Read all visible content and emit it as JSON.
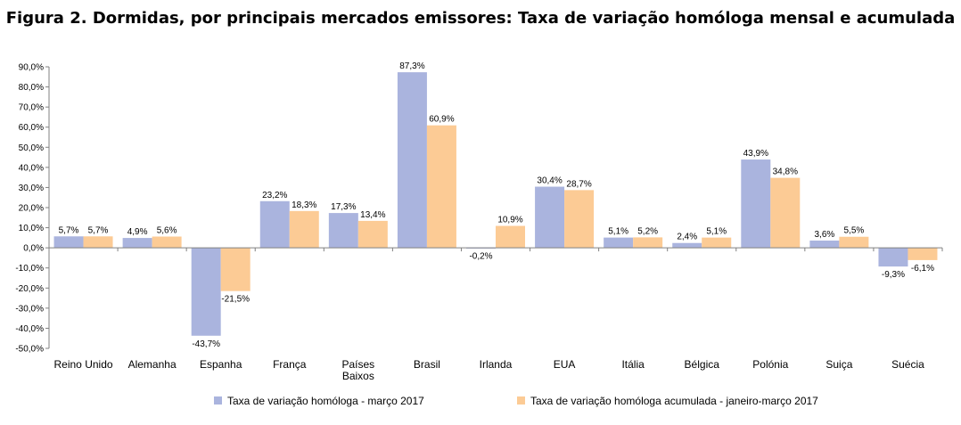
{
  "chart_data": {
    "type": "bar",
    "title": "Figura 2. Dormidas, por principais mercados emissores: Taxa de variação homóloga mensal e acumulada",
    "categories": [
      "Reino Unido",
      "Alemanha",
      "Espanha",
      "França",
      "Países\nBaixos",
      "Brasil",
      "Irlanda",
      "EUA",
      "Itália",
      "Bélgica",
      "Polónia",
      "Suiça",
      "Suécia"
    ],
    "series": [
      {
        "name": "Taxa de variação homóloga - março 2017",
        "color": "#aab4de",
        "values": [
          5.7,
          4.9,
          -43.7,
          23.2,
          17.3,
          87.3,
          -0.2,
          30.4,
          5.1,
          2.4,
          43.9,
          3.6,
          -9.3
        ],
        "labels": [
          "5,7%",
          "4,9%",
          "-43,7%",
          "23,2%",
          "17,3%",
          "87,3%",
          "-0,2%",
          "30,4%",
          "5,1%",
          "2,4%",
          "43,9%",
          "3,6%",
          "-9,3%"
        ]
      },
      {
        "name": "Taxa de variação homóloga acumulada - janeiro-março 2017",
        "color": "#fccb95",
        "values": [
          5.7,
          5.6,
          -21.5,
          18.3,
          13.4,
          60.9,
          10.9,
          28.7,
          5.2,
          5.1,
          34.8,
          5.5,
          -6.1
        ],
        "labels": [
          "5,7%",
          "5,6%",
          "-21,5%",
          "18,3%",
          "13,4%",
          "60,9%",
          "10,9%",
          "28,7%",
          "5,2%",
          "5,1%",
          "34,8%",
          "5,5%",
          "-6,1%"
        ]
      }
    ],
    "ylim": [
      -50,
      90
    ],
    "yticks": [
      90,
      80,
      70,
      60,
      50,
      40,
      30,
      20,
      10,
      0,
      -10,
      -20,
      -30,
      -40,
      -50
    ],
    "ytick_labels": [
      "90,0%",
      "80,0%",
      "70,0%",
      "60,0%",
      "50,0%",
      "40,0%",
      "30,0%",
      "20,0%",
      "10,0%",
      "0,0%",
      "-10,0%",
      "-20,0%",
      "-30,0%",
      "-40,0%",
      "-50,0%"
    ],
    "xlabel": "",
    "ylabel": "",
    "legend_position": "bottom",
    "grid": false
  }
}
